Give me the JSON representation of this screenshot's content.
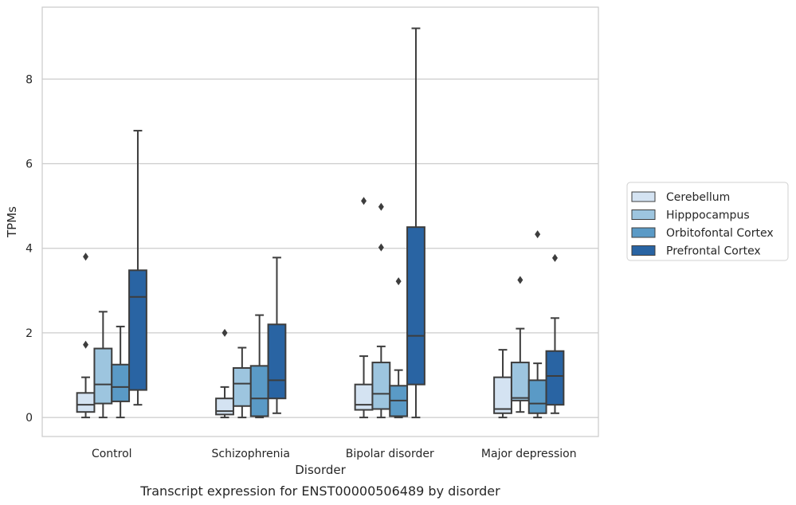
{
  "chart_data": {
    "type": "box",
    "title": "",
    "caption": "Transcript expression for ENST00000506489 by disorder",
    "xlabel": "Disorder",
    "ylabel": "TPMs",
    "ylim": [
      -0.45,
      9.7
    ],
    "yticks": [
      0,
      2,
      4,
      6,
      8
    ],
    "grid": true,
    "legend_position": "right",
    "categories": [
      "Control",
      "Schizophrenia",
      "Bipolar disorder",
      "Major depression"
    ],
    "series": [
      {
        "name": "Cerebellum",
        "color": "#d4e3f2",
        "boxes": [
          {
            "whisker_low": 0.0,
            "q1": 0.13,
            "median": 0.3,
            "q3": 0.58,
            "whisker_high": 0.95,
            "outliers": [
              1.72,
              3.8
            ]
          },
          {
            "whisker_low": 0.0,
            "q1": 0.07,
            "median": 0.15,
            "q3": 0.45,
            "whisker_high": 0.72,
            "outliers": [
              2.0
            ]
          },
          {
            "whisker_low": 0.0,
            "q1": 0.18,
            "median": 0.3,
            "q3": 0.78,
            "whisker_high": 1.45,
            "outliers": [
              5.12
            ]
          },
          {
            "whisker_low": 0.0,
            "q1": 0.1,
            "median": 0.2,
            "q3": 0.95,
            "whisker_high": 1.6,
            "outliers": []
          }
        ]
      },
      {
        "name": "Hipppocampus",
        "color": "#9dc5df",
        "boxes": [
          {
            "whisker_low": 0.0,
            "q1": 0.33,
            "median": 0.78,
            "q3": 1.63,
            "whisker_high": 2.5,
            "outliers": []
          },
          {
            "whisker_low": 0.0,
            "q1": 0.27,
            "median": 0.8,
            "q3": 1.17,
            "whisker_high": 1.65,
            "outliers": []
          },
          {
            "whisker_low": 0.0,
            "q1": 0.2,
            "median": 0.56,
            "q3": 1.3,
            "whisker_high": 1.68,
            "outliers": [
              4.02,
              4.98
            ]
          },
          {
            "whisker_low": 0.13,
            "q1": 0.4,
            "median": 0.46,
            "q3": 1.3,
            "whisker_high": 2.1,
            "outliers": [
              3.25
            ]
          }
        ]
      },
      {
        "name": "Orbitofontal Cortex",
        "color": "#5a9ac6",
        "boxes": [
          {
            "whisker_low": 0.0,
            "q1": 0.38,
            "median": 0.72,
            "q3": 1.25,
            "whisker_high": 2.15,
            "outliers": []
          },
          {
            "whisker_low": 0.0,
            "q1": 0.03,
            "median": 0.45,
            "q3": 1.22,
            "whisker_high": 2.42,
            "outliers": []
          },
          {
            "whisker_low": 0.0,
            "q1": 0.03,
            "median": 0.4,
            "q3": 0.75,
            "whisker_high": 1.12,
            "outliers": [
              3.22
            ]
          },
          {
            "whisker_low": 0.0,
            "q1": 0.1,
            "median": 0.33,
            "q3": 0.88,
            "whisker_high": 1.28,
            "outliers": [
              4.33
            ]
          }
        ]
      },
      {
        "name": "Prefrontal Cortex",
        "color": "#2964a3",
        "boxes": [
          {
            "whisker_low": 0.3,
            "q1": 0.65,
            "median": 2.85,
            "q3": 3.48,
            "whisker_high": 6.78,
            "outliers": []
          },
          {
            "whisker_low": 0.1,
            "q1": 0.45,
            "median": 0.88,
            "q3": 2.2,
            "whisker_high": 3.78,
            "outliers": []
          },
          {
            "whisker_low": 0.0,
            "q1": 0.78,
            "median": 1.93,
            "q3": 4.5,
            "whisker_high": 9.2,
            "outliers": []
          },
          {
            "whisker_low": 0.1,
            "q1": 0.3,
            "median": 0.98,
            "q3": 1.57,
            "whisker_high": 2.35,
            "outliers": [
              3.77
            ]
          }
        ]
      }
    ]
  }
}
